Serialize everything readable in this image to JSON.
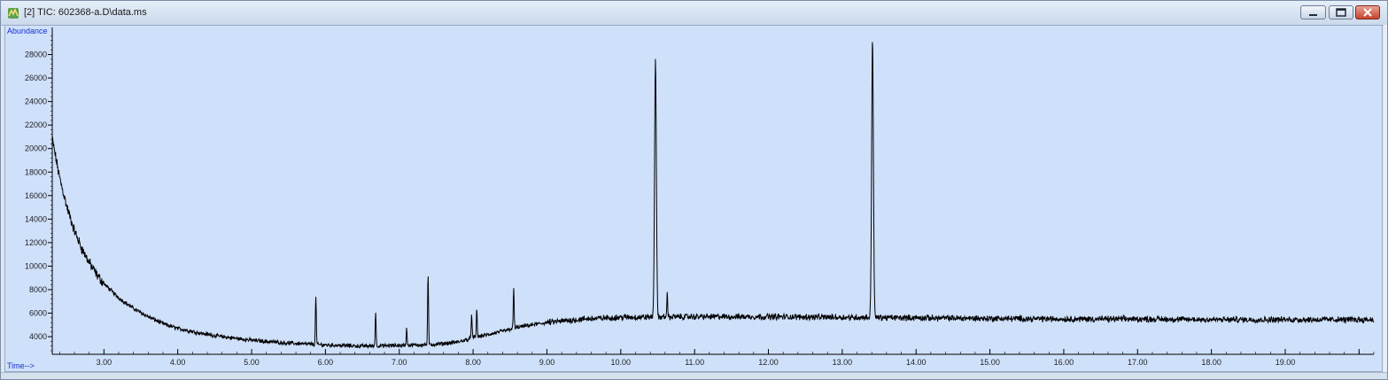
{
  "window": {
    "title": "[2] TIC: 602368-a.D\\data.ms",
    "icon": "chromatogram-app-icon",
    "buttons": {
      "minimize": "minimize-icon",
      "maximize": "maximize-icon",
      "close": "close-icon"
    }
  },
  "chart_data": {
    "type": "line",
    "title": "",
    "xlabel": "Time-->",
    "ylabel": "Abundance",
    "xlim": [
      2.3,
      20.2
    ],
    "ylim": [
      2500,
      30000
    ],
    "x_ticks": [
      "3.00",
      "4.00",
      "5.00",
      "6.00",
      "7.00",
      "8.00",
      "9.00",
      "10.00",
      "11.00",
      "12.00",
      "13.00",
      "14.00",
      "15.00",
      "16.00",
      "17.00",
      "18.00",
      "19.00"
    ],
    "y_ticks": [
      "4000",
      "6000",
      "8000",
      "10000",
      "12000",
      "14000",
      "16000",
      "18000",
      "20000",
      "22000",
      "24000",
      "26000",
      "28000"
    ],
    "grid": false,
    "series_color": "#000000",
    "baseline": [
      [
        2.3,
        20800
      ],
      [
        2.4,
        17500
      ],
      [
        2.5,
        15000
      ],
      [
        2.6,
        13000
      ],
      [
        2.7,
        11500
      ],
      [
        2.8,
        10300
      ],
      [
        2.9,
        9300
      ],
      [
        3.0,
        8500
      ],
      [
        3.2,
        7300
      ],
      [
        3.4,
        6400
      ],
      [
        3.6,
        5700
      ],
      [
        3.8,
        5100
      ],
      [
        4.0,
        4700
      ],
      [
        4.3,
        4300
      ],
      [
        4.6,
        4000
      ],
      [
        5.0,
        3700
      ],
      [
        5.5,
        3450
      ],
      [
        6.0,
        3300
      ],
      [
        6.5,
        3200
      ],
      [
        7.0,
        3250
      ],
      [
        7.5,
        3350
      ],
      [
        7.8,
        3550
      ],
      [
        8.0,
        3900
      ],
      [
        8.3,
        4300
      ],
      [
        8.6,
        4800
      ],
      [
        9.0,
        5200
      ],
      [
        9.5,
        5500
      ],
      [
        10.0,
        5650
      ],
      [
        11.0,
        5700
      ],
      [
        12.0,
        5700
      ],
      [
        13.0,
        5650
      ],
      [
        14.0,
        5600
      ],
      [
        15.0,
        5550
      ],
      [
        16.0,
        5500
      ],
      [
        17.0,
        5500
      ],
      [
        18.0,
        5450
      ],
      [
        19.0,
        5450
      ],
      [
        20.2,
        5450
      ]
    ],
    "peaks": [
      {
        "x": 5.87,
        "height": 7500
      },
      {
        "x": 6.68,
        "height": 6100
      },
      {
        "x": 7.1,
        "height": 4700
      },
      {
        "x": 7.39,
        "height": 9300
      },
      {
        "x": 7.98,
        "height": 6000
      },
      {
        "x": 8.05,
        "height": 6300
      },
      {
        "x": 8.55,
        "height": 8100
      },
      {
        "x": 10.47,
        "height": 27700
      },
      {
        "x": 10.63,
        "height": 7700
      },
      {
        "x": 13.41,
        "height": 29300
      }
    ]
  }
}
